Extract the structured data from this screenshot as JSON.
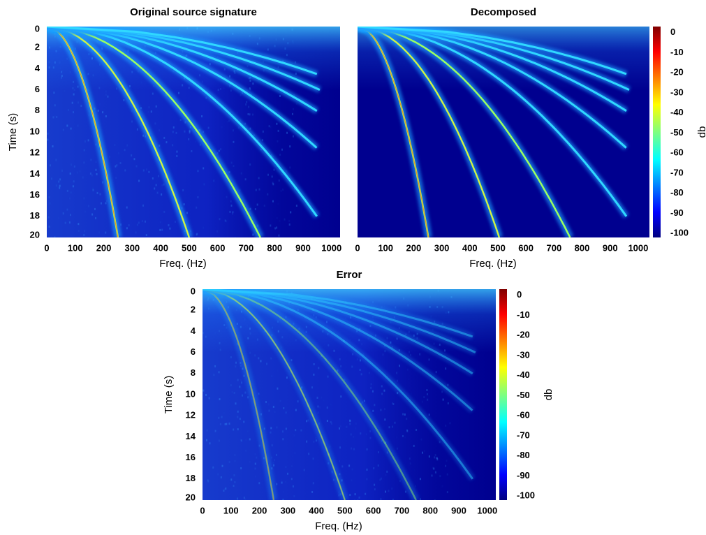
{
  "chart_data": [
    {
      "type": "heatmap",
      "title": "Original source signature",
      "xlabel": "Freq. (Hz)",
      "ylabel": "Time (s)",
      "xlim": [
        0,
        1030
      ],
      "xticks": [
        0,
        100,
        200,
        300,
        400,
        500,
        600,
        700,
        800,
        900,
        1000
      ],
      "ylim": [
        0,
        20
      ],
      "yticks": [
        0,
        2,
        4,
        6,
        8,
        10,
        12,
        14,
        16,
        18,
        20
      ],
      "colormap": "jet"
    },
    {
      "type": "heatmap",
      "title": "Decomposed",
      "xlabel": "Freq. (Hz)",
      "xlim": [
        0,
        1040
      ],
      "xticks": [
        0,
        100,
        200,
        300,
        400,
        500,
        600,
        700,
        800,
        900,
        1000
      ],
      "ylim": [
        0,
        20
      ],
      "colormap": "jet",
      "colorbar": {
        "label": "db",
        "lim": [
          -102,
          3
        ],
        "ticks": [
          0,
          -10,
          -20,
          -30,
          -40,
          -50,
          -60,
          -70,
          -80,
          -90,
          -100
        ]
      }
    },
    {
      "type": "heatmap",
      "title": "Error",
      "xlabel": "Freq. (Hz)",
      "ylabel": "Time (s)",
      "xlim": [
        0,
        1030
      ],
      "xticks": [
        0,
        100,
        200,
        300,
        400,
        500,
        600,
        700,
        800,
        900,
        1000
      ],
      "ylim": [
        0,
        20
      ],
      "yticks": [
        0,
        2,
        4,
        6,
        8,
        10,
        12,
        14,
        16,
        18,
        20
      ],
      "colormap": "jet",
      "colorbar": {
        "label": "db",
        "lim": [
          -102,
          3
        ],
        "ticks": [
          0,
          -10,
          -20,
          -30,
          -40,
          -50,
          -60,
          -70,
          -80,
          -90,
          -100
        ]
      }
    }
  ]
}
